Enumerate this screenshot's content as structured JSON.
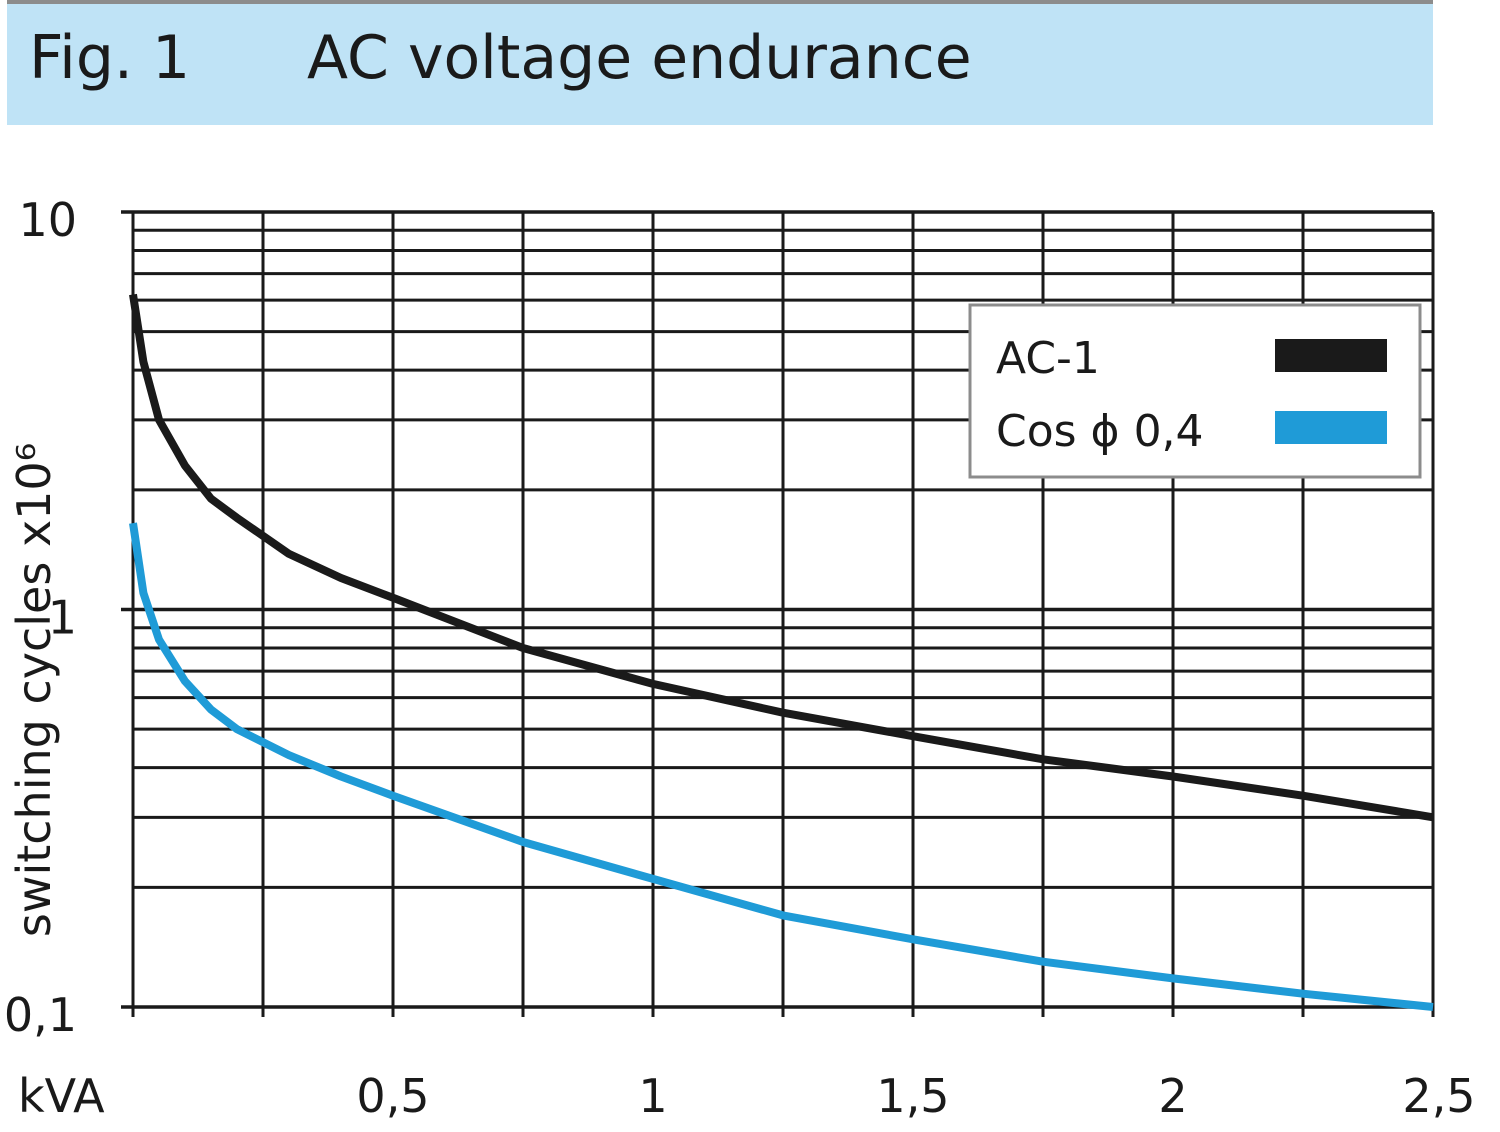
{
  "header": {
    "fig_label": "Fig. 1",
    "title": "AC voltage endurance"
  },
  "chart_data": {
    "type": "line",
    "title": "AC voltage endurance",
    "xlabel": "kVA",
    "ylabel": "switching cycles  x10⁶",
    "xlim": [
      0,
      2.5
    ],
    "ylim": [
      0.1,
      10
    ],
    "yscale": "log",
    "grid": true,
    "legend_position": "top-right",
    "x_ticks": [
      {
        "value": 0.5,
        "label": "0,5"
      },
      {
        "value": 1,
        "label": "1"
      },
      {
        "value": 1.5,
        "label": "1,5"
      },
      {
        "value": 2,
        "label": "2"
      },
      {
        "value": 2.5,
        "label": "2,5"
      }
    ],
    "y_ticks": [
      {
        "value": 0.1,
        "label": "0,1"
      },
      {
        "value": 1,
        "label": "1"
      },
      {
        "value": 10,
        "label": "10"
      }
    ],
    "series": [
      {
        "name": "AC-1",
        "color": "#1a1a1a",
        "x": [
          0,
          0.02,
          0.05,
          0.1,
          0.15,
          0.2,
          0.3,
          0.4,
          0.5,
          0.75,
          1.0,
          1.25,
          1.5,
          1.75,
          2.0,
          2.25,
          2.5
        ],
        "y": [
          6.2,
          4.2,
          3.0,
          2.3,
          1.9,
          1.7,
          1.38,
          1.2,
          1.07,
          0.8,
          0.65,
          0.55,
          0.48,
          0.42,
          0.38,
          0.34,
          0.3
        ]
      },
      {
        "name": "Cos  ϕ 0,4",
        "color": "#1f9bd7",
        "x": [
          0,
          0.02,
          0.05,
          0.1,
          0.15,
          0.2,
          0.3,
          0.4,
          0.5,
          0.75,
          1.0,
          1.25,
          1.5,
          1.75,
          2.0,
          2.25,
          2.5
        ],
        "y": [
          1.65,
          1.1,
          0.84,
          0.66,
          0.56,
          0.5,
          0.43,
          0.38,
          0.34,
          0.26,
          0.21,
          0.17,
          0.148,
          0.13,
          0.118,
          0.108,
          0.1
        ]
      }
    ]
  }
}
